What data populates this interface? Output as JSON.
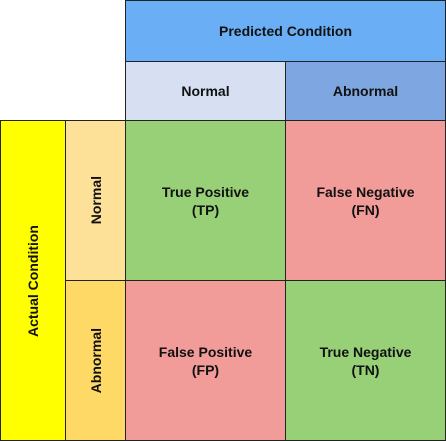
{
  "predicted": {
    "title": "Predicted Condition",
    "col_normal": "Normal",
    "col_abnormal": "Abnormal"
  },
  "actual": {
    "title": "Actual Condition",
    "row_normal": "Normal",
    "row_abnormal": "Abnormal"
  },
  "cells": {
    "tp": {
      "label": "True Positive",
      "abbr": "(TP)"
    },
    "fn": {
      "label": "False Negative",
      "abbr": "(FN)"
    },
    "fp": {
      "label": "False Positive",
      "abbr": "(FP)"
    },
    "tn": {
      "label": "True Negative",
      "abbr": "(TN)"
    }
  },
  "colors": {
    "predicted_header": "#6aaff5",
    "col_normal": "#d6e0f2",
    "col_abnormal": "#7ea6e0",
    "actual_header": "#ffff00",
    "row_normal": "#fde199",
    "row_abnormal": "#ffd966",
    "correct": "#97d077",
    "incorrect": "#f19c99"
  }
}
